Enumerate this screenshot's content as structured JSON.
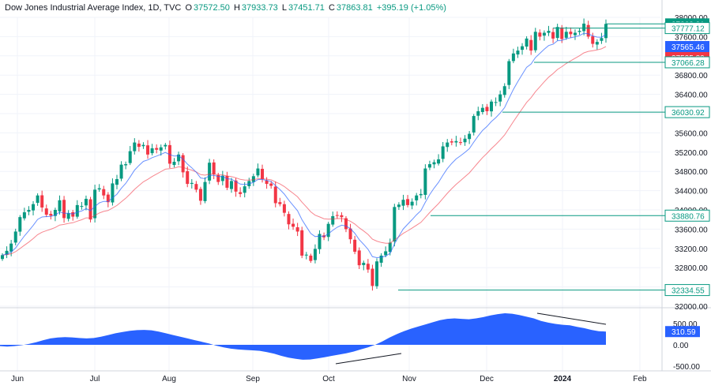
{
  "header": {
    "title": "Dow Jones Industrial Average Index, 1D, TVC",
    "open_label": "O",
    "open": "37572.50",
    "high_label": "H",
    "high": "37933.73",
    "low_label": "L",
    "low": "37451.71",
    "close_label": "C",
    "close": "37863.81",
    "change": "+395.19 (+1.05%)"
  },
  "colors": {
    "up": "#089981",
    "down": "#F23645",
    "ma_fast": "#2962FF",
    "ma_slow": "#F23645",
    "level_line": "#089981",
    "oscillator": "#2962FF",
    "grid": "#F0F3FA",
    "axis_text": "#131722"
  },
  "chart_data": [
    {
      "type": "candlestick",
      "title": "Dow Jones Industrial Average Index, 1D, TVC",
      "y_axis_ticks": [
        "38000.00",
        "37600.00",
        "37200.00",
        "36800.00",
        "36400.00",
        "36000.00",
        "35600.00",
        "35200.00",
        "34800.00",
        "34400.00",
        "34000.00",
        "33600.00",
        "33200.00",
        "32800.00",
        "32400.00",
        "32000.00"
      ],
      "ylim": [
        32000,
        38000
      ],
      "x_axis_ticks": [
        "Jun",
        "Jul",
        "Aug",
        "Sep",
        "Oct",
        "Nov",
        "Dec",
        "2024",
        "Feb"
      ],
      "close_series": [
        33060,
        33150,
        33300,
        33550,
        33850,
        33950,
        34000,
        34120,
        34300,
        34050,
        33900,
        33880,
        34000,
        34200,
        33830,
        33930,
        33860,
        34100,
        34080,
        34230,
        33800,
        34420,
        34450,
        34300,
        34160,
        34550,
        34640,
        34940,
        34950,
        35220,
        35400,
        35310,
        35350,
        35150,
        35280,
        35250,
        35300,
        35350,
        34960,
        35000,
        35150,
        34780,
        34540,
        34560,
        34420,
        34190,
        34580,
        34980,
        34740,
        34580,
        34710,
        34460,
        34600,
        34380,
        34330,
        34490,
        34600,
        34700,
        34860,
        34640,
        34540,
        34500,
        34140,
        34120,
        33940,
        33700,
        33650,
        33550,
        33050,
        33070,
        32940,
        33190,
        33500,
        33430,
        33710,
        33870,
        33890,
        33850,
        33600,
        33390,
        33130,
        32850,
        32900,
        32760,
        32420,
        32930,
        33050,
        33140,
        33320,
        34060,
        34110,
        34210,
        34100,
        34170,
        34300,
        34330,
        34860,
        34950,
        34990,
        35050,
        35320,
        35400,
        35400,
        35430,
        35390,
        35480,
        35580,
        35950,
        36050,
        36120,
        36050,
        36250,
        36240,
        36400,
        36570,
        37090,
        37250,
        37310,
        37400,
        37560,
        37310,
        37700,
        37600,
        37680,
        37720,
        37560,
        37800,
        37550,
        37700,
        37650,
        37680,
        37720,
        37870,
        37600,
        37450,
        37490,
        37570,
        37864
      ],
      "levels": [
        "37863.81",
        "37777.12",
        "37565.46",
        "37535.80",
        "37066.28",
        "36030.92",
        "33880.76",
        "32334.55"
      ],
      "price_labels": {
        "last": "37863.81",
        "ma_fast_value": "37777.12",
        "ma_mid_value": "37565.46",
        "ma_slow_value": "37535.80"
      }
    },
    {
      "type": "area",
      "title": "",
      "y_axis_ticks": [
        "500.00",
        "0.00",
        "-500.00"
      ],
      "ylim": [
        -500,
        800
      ],
      "last_value": "310.59",
      "values": [
        -30,
        -40,
        -30,
        -10,
        20,
        60,
        110,
        150,
        170,
        180,
        175,
        160,
        150,
        160,
        190,
        230,
        270,
        300,
        330,
        345,
        350,
        340,
        310,
        270,
        230,
        190,
        150,
        110,
        70,
        30,
        -20,
        -60,
        -90,
        -110,
        -120,
        -130,
        -140,
        -170,
        -210,
        -260,
        -300,
        -330,
        -350,
        -345,
        -320,
        -290,
        -260,
        -230,
        -200,
        -160,
        -110,
        -60,
        0,
        80,
        170,
        250,
        320,
        380,
        430,
        480,
        530,
        580,
        610,
        620,
        610,
        600,
        620,
        650,
        690,
        720,
        740,
        730,
        700,
        660,
        620,
        560,
        520,
        490,
        470,
        460,
        420,
        390,
        350,
        320,
        311
      ]
    }
  ]
}
